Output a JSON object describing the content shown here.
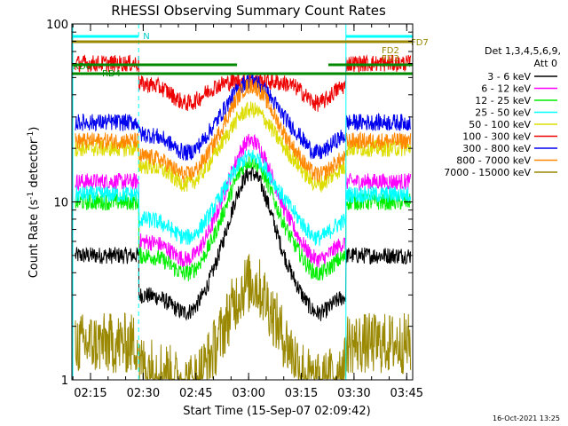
{
  "chart_data": {
    "type": "line",
    "title": "RHESSI Observing Summary Count Rates",
    "xlabel": "Start Time (15-Sep-07 02:09:42)",
    "ylabel_main": "Count Rate (s",
    "ylabel_sup1": "-1",
    "ylabel_mid": " detector",
    "ylabel_sup2": "-1",
    "ylabel_end": ")",
    "y_scale": "log",
    "ylim": [
      1,
      100
    ],
    "xlim_minutes": [
      0,
      97
    ],
    "y_tick_labels": [
      "1",
      "10",
      "100"
    ],
    "y_tick_values": [
      1,
      10,
      100
    ],
    "x_tick_labels": [
      "02:15",
      "02:30",
      "02:45",
      "03:00",
      "03:15",
      "03:30",
      "03:45"
    ],
    "x_tick_minutes": [
      5.3,
      20.3,
      35.3,
      50.3,
      65.3,
      80.3,
      95.3
    ],
    "legend_header": [
      "Det 1,3,4,5,6,9,",
      "Att 0"
    ],
    "series": [
      {
        "name": "3 - 6 keV",
        "color": "#000000",
        "ins_level": 3.0,
        "night_level": 5.0,
        "peak": 14.5
      },
      {
        "name": "6 - 12 keV",
        "color": "#ff00ff",
        "ins_level": 6.0,
        "night_level": 13.0,
        "peak": 22.0
      },
      {
        "name": "12 - 25 keV",
        "color": "#00ee00",
        "ins_level": 5.0,
        "night_level": 10.0,
        "peak": 17.0
      },
      {
        "name": "25 - 50 keV",
        "color": "#00ffff",
        "ins_level": 8.0,
        "night_level": 11.0,
        "peak": 18.0
      },
      {
        "name": "50 - 100 keV",
        "color": "#dddd00",
        "ins_level": 16.0,
        "night_level": 20.0,
        "peak": 33.0
      },
      {
        "name": "100 - 300 keV",
        "color": "#ee0000",
        "ins_level": 46.0,
        "night_level": 60.0,
        "peak": 48.0
      },
      {
        "name": "300 - 800 keV",
        "color": "#0000ee",
        "ins_level": 24.0,
        "night_level": 28.0,
        "peak": 48.0
      },
      {
        "name": "800 - 7000 keV",
        "color": "#ff8800",
        "ins_level": 18.0,
        "night_level": 22.0,
        "peak": 45.0
      },
      {
        "name": "7000 - 15000 keV",
        "color": "#998800",
        "ins_level": 1.2,
        "night_level": 1.6,
        "peak": 3.5
      }
    ],
    "markers": {
      "N_label": "N",
      "RD0_label": "RD0",
      "RD4_label": "RD4",
      "FD2_label": "FD2",
      "FD3_label": "FD3",
      "FD7_label": "FD7",
      "night_intervals_minutes": [
        [
          -1,
          19
        ],
        [
          78,
          97
        ]
      ],
      "saa_intervals_minutes": [
        [
          0,
          47
        ],
        [
          73,
          97
        ]
      ]
    },
    "grid": false,
    "legend_position": "right"
  },
  "stamp": "16-Oct-2021 13:25"
}
